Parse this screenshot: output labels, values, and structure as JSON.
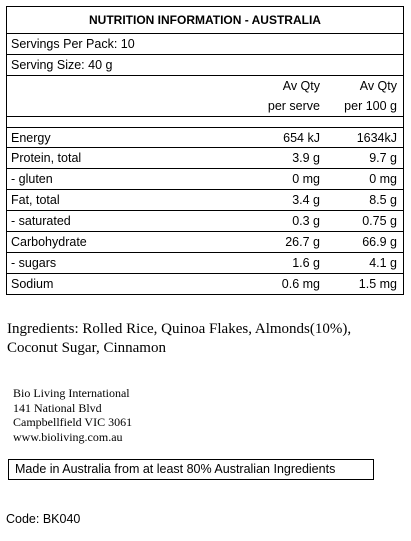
{
  "panel": {
    "title": "NUTRITION INFORMATION - AUSTRALIA",
    "servings_per_pack": "Servings Per Pack: 10",
    "serving_size": "Serving Size: 40 g",
    "header": {
      "col1_line1": "Av Qty",
      "col1_line2": "per serve",
      "col2_line1": "Av Qty",
      "col2_line2": "per 100 g"
    },
    "rows": [
      {
        "name": "Energy",
        "per_serve": "654 kJ",
        "per_100g": "1634kJ"
      },
      {
        "name": "Protein, total",
        "per_serve": "3.9 g",
        "per_100g": "9.7 g"
      },
      {
        "name": " - gluten",
        "per_serve": "0 mg",
        "per_100g": "0 mg"
      },
      {
        "name": "Fat, total",
        "per_serve": "3.4 g",
        "per_100g": "8.5 g"
      },
      {
        "name": " - saturated",
        "per_serve": "0.3 g",
        "per_100g": "0.75 g"
      },
      {
        "name": "Carbohydrate",
        "per_serve": "26.7 g",
        "per_100g": "66.9 g"
      },
      {
        "name": " - sugars",
        "per_serve": "1.6 g",
        "per_100g": "4.1 g"
      },
      {
        "name": "Sodium",
        "per_serve": "0.6 mg",
        "per_100g": "1.5 mg"
      }
    ]
  },
  "ingredients": {
    "line1": "Ingredients: Rolled Rice, Quinoa Flakes, Almonds(10%),",
    "line2": "Coconut Sugar, Cinnamon"
  },
  "address": {
    "line1": "Bio Living International",
    "line2": "141 National Blvd",
    "line3": "Campbellfield VIC 3061",
    "line4": "www.bioliving.com.au"
  },
  "made_in": "Made in Australia from at least 80% Australian Ingredients",
  "code": "Code: BK040"
}
